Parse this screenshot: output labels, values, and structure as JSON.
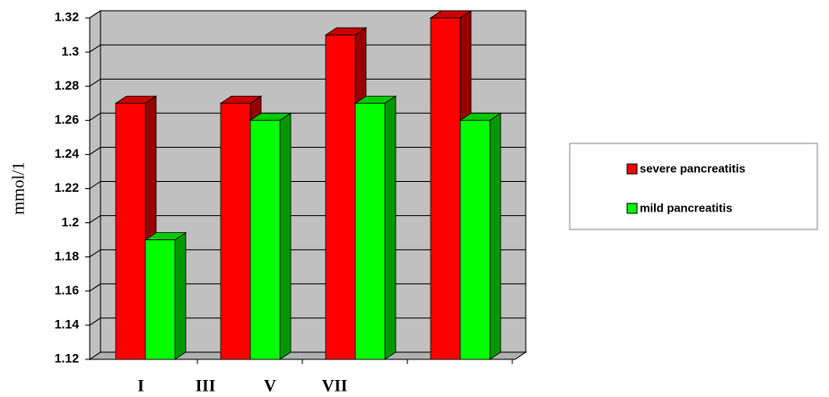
{
  "chart_data": {
    "type": "bar3d",
    "y_label": "mmol/1",
    "categories": [
      "I",
      "III",
      "V",
      "VII"
    ],
    "series": [
      {
        "name": "severe pancreatitis",
        "color": "#ff0000",
        "values": [
          1.27,
          1.27,
          1.31,
          1.32
        ]
      },
      {
        "name": "mild pancreatitis",
        "color": "#00ff00",
        "values": [
          1.19,
          1.26,
          1.27,
          1.26
        ]
      }
    ],
    "ylim": [
      1.12,
      1.32
    ],
    "yticks": [
      1.12,
      1.14,
      1.16,
      1.18,
      1.2,
      1.22,
      1.24,
      1.26,
      1.28,
      1.3,
      1.32
    ],
    "grid": true
  }
}
